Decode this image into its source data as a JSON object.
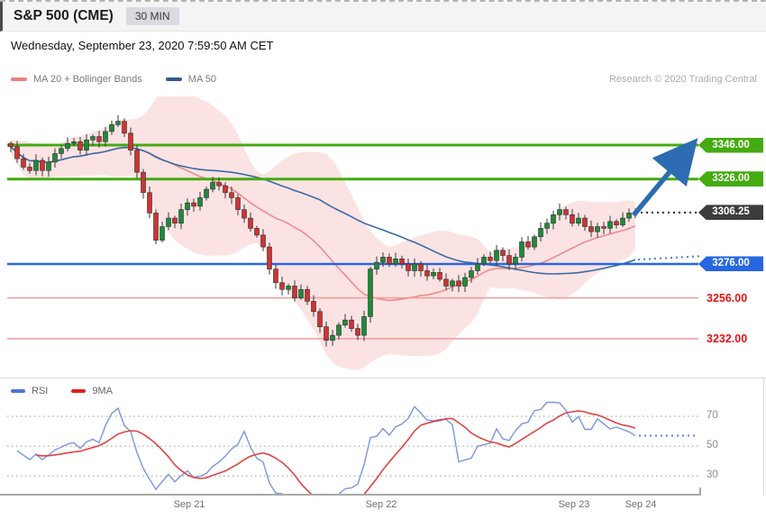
{
  "header": {
    "title": "S&P 500 (CME)",
    "timeframe_badge": "30 MIN",
    "datetime": "Wednesday, September 23, 2020 7:59:50 AM CET"
  },
  "credit": "Research © 2020 Trading Central",
  "legend_main": [
    {
      "label": "MA 20 + Bollinger Bands",
      "color": "#f08080"
    },
    {
      "label": "MA 50",
      "color": "#2d5c8a"
    }
  ],
  "legend_rsi": [
    {
      "label": "RSI",
      "color": "#4d74d9"
    },
    {
      "label": "9MA",
      "color": "#e02020"
    }
  ],
  "colors": {
    "candle_up": "#1f8a3a",
    "candle_down": "#cf3333",
    "wick": "#3a3a3a",
    "bollinger_fill": "#f9d4d6",
    "ma20_line": "#f28b8b",
    "ma50_line": "#3a6ba3",
    "resistance_green": "#44ab10",
    "support_blue": "#2767e0",
    "support_minor_pink": "#f29a9a",
    "support_minor_text": "#e51515",
    "last_price_tag": "#3c3c3c",
    "arrow_blue": "#2d6cb2",
    "rsi_line": "#7b96e0",
    "rsi_ma_line": "#e04444",
    "grid_dotted": "#bbbbbb"
  },
  "chart_data": {
    "type": "candlestick",
    "symbol": "S&P 500 (CME)",
    "interval": "30 MIN",
    "title": "S&P 500 (CME) 30 MIN with MA 20 + Bollinger Bands, MA 50 and RSI",
    "price_axis_visible_range": [
      3213,
      3375
    ],
    "first_open": 3347,
    "closes": [
      3345,
      3338,
      3333,
      3331,
      3337,
      3331,
      3336,
      3341,
      3344,
      3347,
      3348,
      3343,
      3349,
      3351,
      3348,
      3354,
      3358,
      3360,
      3353,
      3343,
      3330,
      3318,
      3306,
      3290,
      3298,
      3303,
      3300,
      3308,
      3312,
      3310,
      3315,
      3320,
      3324,
      3322,
      3318,
      3315,
      3308,
      3303,
      3297,
      3293,
      3286,
      3273,
      3265,
      3261,
      3263,
      3256,
      3261,
      3254,
      3248,
      3239,
      3231,
      3234,
      3240,
      3243,
      3238,
      3234,
      3245,
      3273,
      3277,
      3280,
      3276,
      3279,
      3276,
      3272,
      3276,
      3272,
      3269,
      3271,
      3267,
      3263,
      3266,
      3263,
      3268,
      3272,
      3276,
      3280,
      3278,
      3284,
      3281,
      3276,
      3280,
      3289,
      3286,
      3292,
      3297,
      3300,
      3305,
      3308,
      3305,
      3300,
      3303,
      3298,
      3295,
      3298,
      3297,
      3301,
      3299,
      3303,
      3306,
      3306.25
    ],
    "last_price": 3306.25,
    "levels": [
      {
        "value": 3346.0,
        "label": "3346.00",
        "kind": "resistance"
      },
      {
        "value": 3326.0,
        "label": "3326.00",
        "kind": "resistance"
      },
      {
        "value": 3306.25,
        "label": "3306.25",
        "kind": "last"
      },
      {
        "value": 3276.0,
        "label": "3276.00",
        "kind": "support"
      },
      {
        "value": 3256.0,
        "label": "3256.00",
        "kind": "support-minor"
      },
      {
        "value": 3232.0,
        "label": "3232.00",
        "kind": "support-minor"
      }
    ],
    "overlays": [
      "MA 20 + Bollinger Bands",
      "MA 50"
    ],
    "arrow": {
      "direction": "up",
      "from_price": 3306.25,
      "to_price": 3346.0
    },
    "x_axis": {
      "labels": [
        "Sep 21",
        "Sep 22",
        "Sep 23",
        "Sep 24"
      ]
    },
    "rsi": {
      "indicator": "RSI",
      "period": 14,
      "ma": "9MA",
      "scale_labels": [
        "70",
        "50",
        "30"
      ],
      "scale_values": [
        70,
        50,
        30
      ],
      "last_value_approx": 60
    }
  }
}
